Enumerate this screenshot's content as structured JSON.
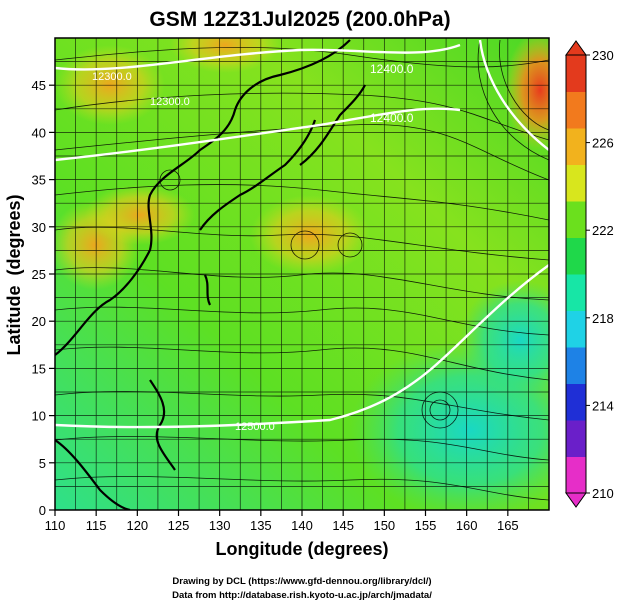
{
  "title": "GSM 12Z31Jul2025 (200.0hPa)",
  "xlabel": "Longitude (degrees)",
  "ylabel": "Latitude  (degrees)",
  "x_ticks": [
    "110",
    "115",
    "120",
    "125",
    "130",
    "135",
    "140",
    "145",
    "150",
    "155",
    "160",
    "165"
  ],
  "y_ticks": [
    "0",
    "5",
    "10",
    "15",
    "20",
    "25",
    "30",
    "35",
    "40",
    "45"
  ],
  "colorbar": {
    "ticks": [
      "210",
      "214",
      "218",
      "222",
      "226",
      "230"
    ],
    "min": 210,
    "max": 230,
    "colors": [
      "#e62ec8",
      "#6a1fc9",
      "#1f2fd6",
      "#1e82e6",
      "#1fd2e6",
      "#17e6a6",
      "#1fd84a",
      "#6be01d",
      "#d8e61d",
      "#f2b21d",
      "#f27a1d",
      "#e33a1d"
    ]
  },
  "contours": [
    "12400.0",
    "12400.0",
    "12300.0",
    "12300.0",
    "12500.0"
  ],
  "credits": [
    "Drawing by DCL (https://www.gfd-dennou.org/library/dcl/)",
    "Data from http://database.rish.kyoto-u.ac.jp/arch/jmadata/"
  ]
}
